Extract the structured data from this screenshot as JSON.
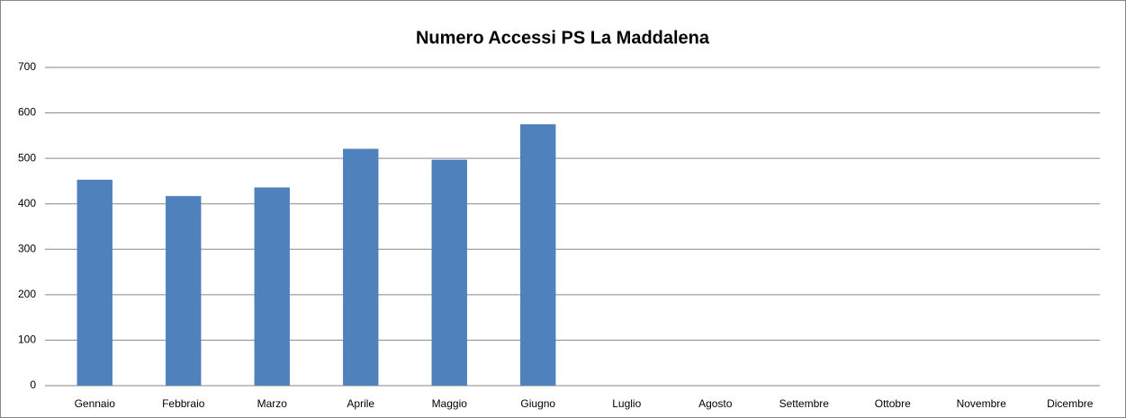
{
  "chart_data": {
    "type": "bar",
    "title": "Numero Accessi PS La Maddalena",
    "categories": [
      "Gennaio",
      "Febbraio",
      "Marzo",
      "Aprile",
      "Maggio",
      "Giugno",
      "Luglio",
      "Agosto",
      "Settembre",
      "Ottobre",
      "Novembre",
      "Dicembre"
    ],
    "values": [
      453,
      417,
      436,
      521,
      497,
      575,
      null,
      null,
      null,
      null,
      null,
      null
    ],
    "color": "#4f81bd",
    "ylim": [
      0,
      700
    ],
    "yticks": [
      0,
      100,
      200,
      300,
      400,
      500,
      600,
      700
    ],
    "grid": true
  }
}
